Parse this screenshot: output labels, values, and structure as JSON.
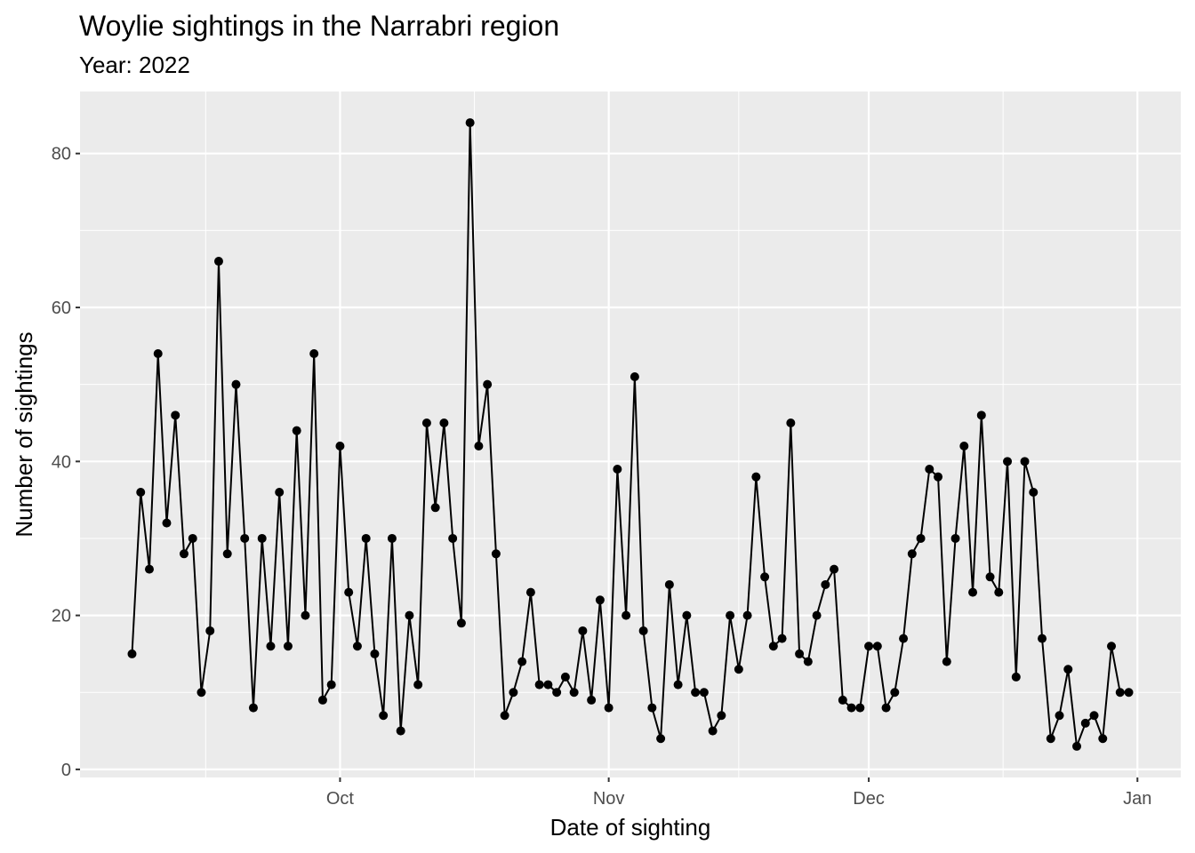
{
  "chart_data": {
    "type": "line",
    "title": "Woylie sightings in the Narrabri region",
    "subtitle": "Year: 2022",
    "x_label": "Date of sighting",
    "y_label": "Number of sightings",
    "x": [
      "2022-09-07",
      "2022-09-08",
      "2022-09-09",
      "2022-09-10",
      "2022-09-11",
      "2022-09-12",
      "2022-09-13",
      "2022-09-14",
      "2022-09-15",
      "2022-09-16",
      "2022-09-17",
      "2022-09-18",
      "2022-09-19",
      "2022-09-20",
      "2022-09-21",
      "2022-09-22",
      "2022-09-23",
      "2022-09-24",
      "2022-09-25",
      "2022-09-26",
      "2022-09-27",
      "2022-09-28",
      "2022-09-29",
      "2022-09-30",
      "2022-10-01",
      "2022-10-02",
      "2022-10-03",
      "2022-10-04",
      "2022-10-05",
      "2022-10-06",
      "2022-10-07",
      "2022-10-08",
      "2022-10-09",
      "2022-10-10",
      "2022-10-11",
      "2022-10-12",
      "2022-10-13",
      "2022-10-14",
      "2022-10-15",
      "2022-10-16",
      "2022-10-17",
      "2022-10-18",
      "2022-10-19",
      "2022-10-20",
      "2022-10-21",
      "2022-10-22",
      "2022-10-23",
      "2022-10-24",
      "2022-10-25",
      "2022-10-26",
      "2022-10-27",
      "2022-10-28",
      "2022-10-29",
      "2022-10-30",
      "2022-10-31",
      "2022-11-01",
      "2022-11-02",
      "2022-11-03",
      "2022-11-04",
      "2022-11-05",
      "2022-11-06",
      "2022-11-07",
      "2022-11-08",
      "2022-11-09",
      "2022-11-10",
      "2022-11-11",
      "2022-11-12",
      "2022-11-13",
      "2022-11-14",
      "2022-11-15",
      "2022-11-16",
      "2022-11-17",
      "2022-11-18",
      "2022-11-19",
      "2022-11-20",
      "2022-11-21",
      "2022-11-22",
      "2022-11-23",
      "2022-11-24",
      "2022-11-25",
      "2022-11-26",
      "2022-11-27",
      "2022-11-28",
      "2022-11-29",
      "2022-11-30",
      "2022-12-01",
      "2022-12-02",
      "2022-12-03",
      "2022-12-04",
      "2022-12-05",
      "2022-12-06",
      "2022-12-07",
      "2022-12-08",
      "2022-12-09",
      "2022-12-10",
      "2022-12-11",
      "2022-12-12",
      "2022-12-13",
      "2022-12-14",
      "2022-12-15",
      "2022-12-16",
      "2022-12-17",
      "2022-12-18",
      "2022-12-19",
      "2022-12-20",
      "2022-12-21",
      "2022-12-22",
      "2022-12-23",
      "2022-12-24",
      "2022-12-25",
      "2022-12-26",
      "2022-12-27",
      "2022-12-28",
      "2022-12-29",
      "2022-12-30",
      "2022-12-31"
    ],
    "series": [
      {
        "color": "#000000",
        "values": [
          15,
          36,
          26,
          54,
          32,
          46,
          28,
          30,
          10,
          18,
          66,
          28,
          50,
          30,
          8,
          30,
          16,
          36,
          16,
          44,
          20,
          54,
          9,
          11,
          42,
          23,
          16,
          30,
          15,
          7,
          30,
          5,
          20,
          11,
          45,
          34,
          45,
          30,
          19,
          84,
          42,
          50,
          28,
          7,
          10,
          14,
          23,
          11,
          11,
          10,
          12,
          10,
          18,
          9,
          22,
          8,
          39,
          20,
          51,
          18,
          8,
          4,
          24,
          11,
          20,
          10,
          10,
          5,
          7,
          20,
          13,
          20,
          38,
          25,
          16,
          17,
          45,
          15,
          14,
          20,
          24,
          26,
          9,
          8,
          8,
          16,
          16,
          8,
          10,
          17,
          28,
          30,
          39,
          38,
          14,
          30,
          42,
          23,
          46,
          25,
          23,
          40,
          12,
          40,
          36,
          17,
          4,
          7,
          13,
          3,
          6,
          7,
          4,
          16,
          10,
          10
        ]
      }
    ],
    "xlim": [
      "2022-09-01",
      "2023-01-06"
    ],
    "xticks": [
      {
        "value": "2022-10-01",
        "label": "Oct"
      },
      {
        "value": "2022-11-01",
        "label": "Nov"
      },
      {
        "value": "2022-12-01",
        "label": "Dec"
      },
      {
        "value": "2023-01-01",
        "label": "Jan"
      }
    ],
    "ylim": [
      -1.05,
      88.05
    ],
    "yticks": [
      0,
      20,
      40,
      60,
      80
    ],
    "grid": true
  }
}
